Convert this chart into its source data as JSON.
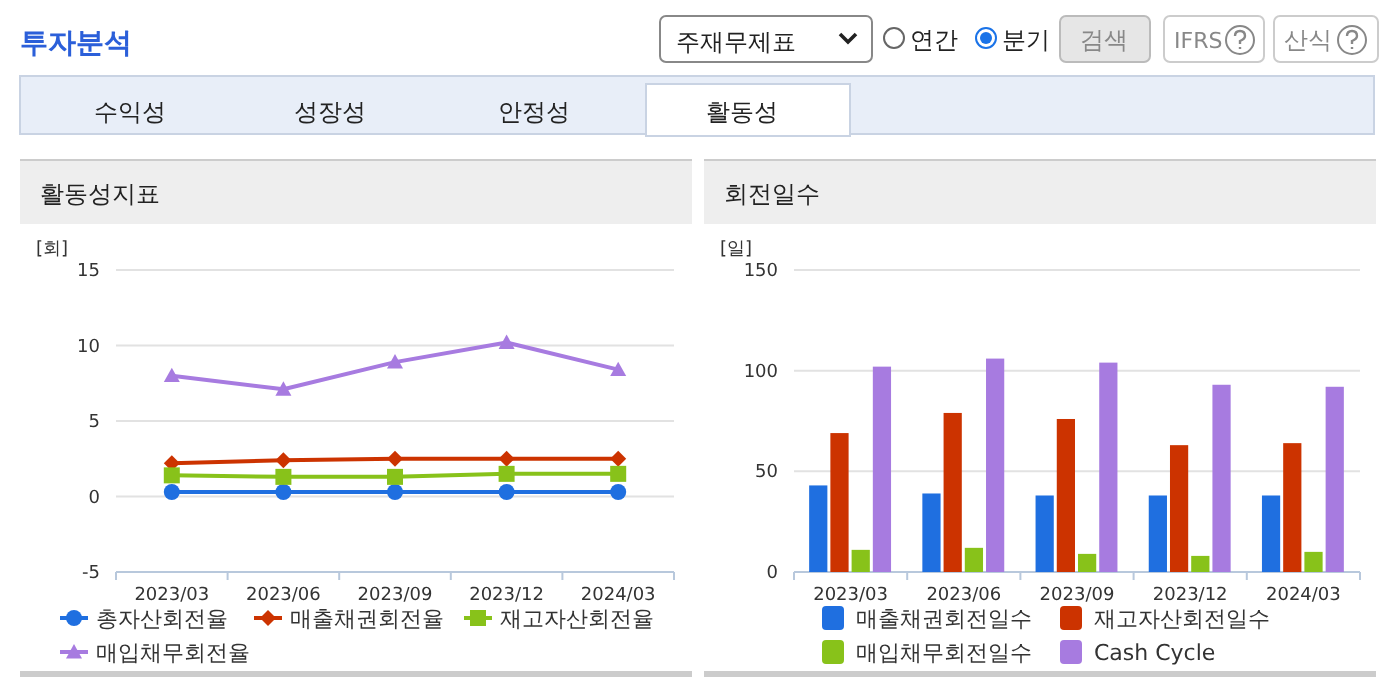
{
  "chart_data": [
    {
      "type": "other",
      "title": "투자분석",
      "annotations": [
        "주재무제표",
        "연간",
        "분기",
        "검색",
        "IFRS",
        "산식",
        "수익성",
        "성장성",
        "안정성",
        "활동성"
      ]
    },
    {
      "type": "line",
      "title": "활동성지표",
      "ylabel": "[회]",
      "categories": [
        "2023/03",
        "2023/06",
        "2023/09",
        "2023/12",
        "2024/03"
      ],
      "ylim": [
        -5,
        15
      ],
      "yticks": [
        -5,
        0,
        5,
        10,
        15
      ],
      "grid": "y",
      "legend": "bottom",
      "series": [
        {
          "name": "총자산회전율",
          "color": "#1f6fe0",
          "marker": "circle",
          "values": [
            0.3,
            0.3,
            0.3,
            0.3,
            0.3
          ]
        },
        {
          "name": "매출채권회전율",
          "color": "#cc3300",
          "marker": "diamond",
          "values": [
            2.2,
            2.4,
            2.5,
            2.5,
            2.5
          ]
        },
        {
          "name": "재고자산회전율",
          "color": "#88c21a",
          "marker": "square",
          "values": [
            1.4,
            1.3,
            1.3,
            1.5,
            1.5
          ]
        },
        {
          "name": "매입채무회전율",
          "color": "#a77be0",
          "marker": "triangle",
          "values": [
            8.0,
            7.1,
            8.9,
            10.2,
            8.4
          ]
        }
      ]
    },
    {
      "type": "bar",
      "title": "회전일수",
      "ylabel": "[일]",
      "categories": [
        "2023/03",
        "2023/06",
        "2023/09",
        "2023/12",
        "2024/03"
      ],
      "ylim": [
        0,
        150
      ],
      "yticks": [
        0,
        50,
        100,
        150
      ],
      "grid": "y",
      "legend": "bottom",
      "series": [
        {
          "name": "매출채권회전일수",
          "color": "#1f6fe0",
          "values": [
            43,
            39,
            38,
            38,
            38
          ]
        },
        {
          "name": "재고자산회전일수",
          "color": "#cc3300",
          "values": [
            69,
            79,
            76,
            63,
            64
          ]
        },
        {
          "name": "매입채무회전일수",
          "color": "#88c21a",
          "values": [
            11,
            12,
            9,
            8,
            10
          ]
        },
        {
          "name": "Cash Cycle",
          "color": "#a77be0",
          "values": [
            102,
            106,
            104,
            93,
            92
          ]
        }
      ]
    }
  ]
}
